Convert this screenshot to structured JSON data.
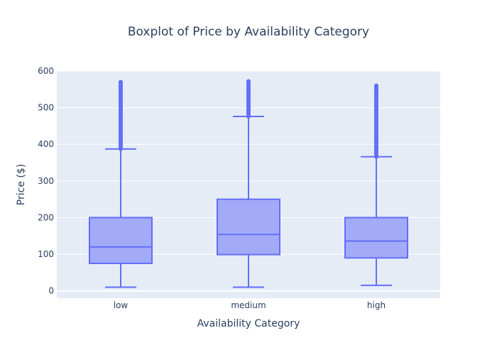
{
  "chart_data": {
    "type": "box",
    "title": "Boxplot of Price by Availability Category",
    "xlabel": "Availability Category",
    "ylabel": "Price ($)",
    "ylim": [
      -20,
      600
    ],
    "yticks": [
      0,
      100,
      200,
      300,
      400,
      500,
      600
    ],
    "grid": true,
    "colors": {
      "plot_bg": "#e5ecf6",
      "grid": "#ffffff",
      "box_fill": "#a3abf8",
      "box_line": "#636efa",
      "text": "#2a3f5f"
    },
    "categories": [
      "low",
      "medium",
      "high"
    ],
    "boxes": [
      {
        "category": "low",
        "min": 10,
        "q1": 75,
        "median": 120,
        "q3": 200,
        "max": 387,
        "outliers_range": [
          387,
          570
        ]
      },
      {
        "category": "medium",
        "min": 10,
        "q1": 99,
        "median": 154,
        "q3": 250,
        "max": 476,
        "outliers_range": [
          476,
          572
        ]
      },
      {
        "category": "high",
        "min": 15,
        "q1": 90,
        "median": 136,
        "q3": 200,
        "max": 366,
        "outliers_range": [
          366,
          560
        ]
      }
    ]
  }
}
